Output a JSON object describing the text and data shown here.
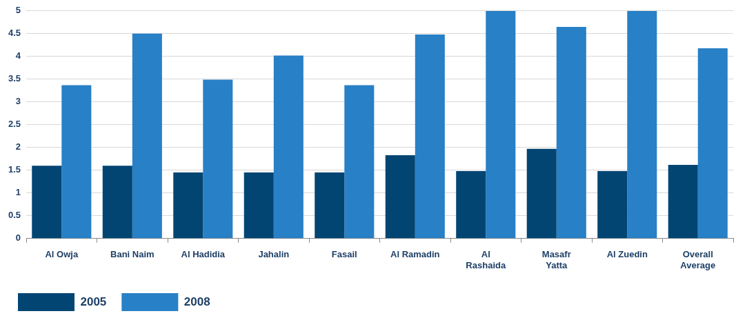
{
  "chart_data": {
    "type": "bar",
    "categories": [
      "Al Owja",
      "Bani Naim",
      "Al Hadidia",
      "Jahalin",
      "Fasail",
      "Al Ramadin",
      "Al Rashaida",
      "Masafr Yatta",
      "Al Zuedin",
      "Overall Average"
    ],
    "series": [
      {
        "name": "2005",
        "color": "#024573",
        "values": [
          1.6,
          1.6,
          1.45,
          1.45,
          1.45,
          1.83,
          1.48,
          1.97,
          1.48,
          1.62
        ]
      },
      {
        "name": "2008",
        "color": "#2880c6",
        "values": [
          3.37,
          4.5,
          3.49,
          4.02,
          3.37,
          4.48,
          5,
          4.65,
          5,
          4.18
        ]
      }
    ],
    "ylim": [
      0,
      5
    ],
    "yticks": [
      0,
      0.5,
      1,
      1.5,
      2,
      2.5,
      3,
      3.5,
      4,
      4.5,
      5
    ],
    "grid": "y",
    "legend": "bottom left"
  }
}
